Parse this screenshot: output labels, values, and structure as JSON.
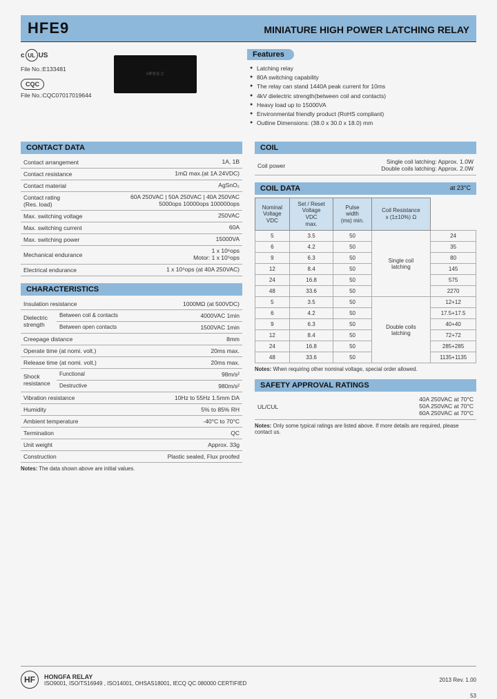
{
  "header": {
    "model": "HFE9",
    "title": "MINIATURE HIGH POWER LATCHING RELAY"
  },
  "certs": {
    "ul_prefix": "c",
    "ul_suffix": "US",
    "ul_file": "File No.:E133481",
    "cqc_label": "CQC",
    "cqc_file": "File No.:CQC07017019644"
  },
  "features": {
    "header": "Features",
    "items": [
      "Latching relay",
      "80A switching capability",
      "The relay can stand 1440A peak current for 10ms",
      "4kV dielectric strength(between coil and contacts)",
      "Heavy load up to 15000VA",
      "Environmental friendly product (RoHS compliant)",
      "Outline Dimensions: (38.0 x 30.0 x 18.0) mm"
    ]
  },
  "contact_data": {
    "header": "CONTACT DATA",
    "rows": [
      {
        "k": "Contact arrangement",
        "v": "1A, 1B"
      },
      {
        "k": "Contact resistance",
        "v": "1mΩ max.(at 1A 24VDC)"
      },
      {
        "k": "Contact material",
        "v": "AgSnO₂"
      },
      {
        "k": "Contact rating\n(Res. load)",
        "v": "60A 250VAC | 50A 250VAC | 40A 250VAC\n5000ops        10000ops        100000ops"
      },
      {
        "k": "Max. switching voltage",
        "v": "250VAC"
      },
      {
        "k": "Max. switching current",
        "v": "60A"
      },
      {
        "k": "Max. switching power",
        "v": "15000VA"
      },
      {
        "k": "Mechanical endurance",
        "v": "1 x 10⁶ops\nMotor: 1 x 10⁵ops"
      },
      {
        "k": "Electrical endurance",
        "v": "1 x 10⁵ops (at 40A 250VAC)"
      }
    ]
  },
  "characteristics": {
    "header": "CHARACTERISTICS",
    "rows": [
      {
        "k": "Insulation resistance",
        "v": "1000MΩ (at 500VDC)"
      },
      {
        "k": "Dielectric strength — Between coil & contacts",
        "v": "4000VAC 1min",
        "indent": true,
        "group": "Dielectric\nstrength"
      },
      {
        "k": "Dielectric strength — Between open contacts",
        "v": "1500VAC 1min",
        "indent": true
      },
      {
        "k": "Creepage distance",
        "v": "8mm"
      },
      {
        "k": "Operate time (at nomi. volt.)",
        "v": "20ms max."
      },
      {
        "k": "Release time (at nomi. volt.)",
        "v": "20ms max."
      },
      {
        "k": "Shock resistance — Functional",
        "v": "98m/s²",
        "indent": true,
        "group": "Shock resistance"
      },
      {
        "k": "Shock resistance — Destructive",
        "v": "980m/s²",
        "indent": true
      },
      {
        "k": "Vibration resistance",
        "v": "10Hz to 55Hz 1.5mm DA"
      },
      {
        "k": "Humidity",
        "v": "5% to 85% RH"
      },
      {
        "k": "Ambient temperature",
        "v": "-40°C to 70°C"
      },
      {
        "k": "Termination",
        "v": "QC"
      },
      {
        "k": "Unit weight",
        "v": "Approx. 33g"
      },
      {
        "k": "Construction",
        "v": "Plastic sealed, Flux proofed"
      }
    ],
    "note": "Notes: The data shown above are initial values."
  },
  "coil": {
    "header": "COIL",
    "row": {
      "k": "Coil power",
      "v": "Single coil latching: Approx. 1.0W\nDouble coils latching: Approx. 2.0W"
    }
  },
  "coil_data": {
    "header": "COIL DATA",
    "header_right": "at 23°C",
    "cols": [
      "Nominal\nVoltage\nVDC",
      "Set / Reset\nVoltage\nVDC\nmax.",
      "Pulse\nwidth\n(ms) min.",
      "",
      "Coil Resistance\nx (1±10%) Ω"
    ],
    "rows": [
      {
        "v": [
          "5",
          "3.5",
          "50",
          "",
          "24"
        ],
        "group": "Single coil\nlatching",
        "gstart": true
      },
      {
        "v": [
          "6",
          "4.2",
          "50",
          "",
          "35"
        ]
      },
      {
        "v": [
          "9",
          "6.3",
          "50",
          "",
          "80"
        ]
      },
      {
        "v": [
          "12",
          "8.4",
          "50",
          "",
          "145"
        ]
      },
      {
        "v": [
          "24",
          "16.8",
          "50",
          "",
          "575"
        ]
      },
      {
        "v": [
          "48",
          "33.6",
          "50",
          "",
          "2270"
        ],
        "gend": true
      },
      {
        "v": [
          "5",
          "3.5",
          "50",
          "",
          "12+12"
        ],
        "group": "Double coils\nlatching",
        "gstart": true
      },
      {
        "v": [
          "6",
          "4.2",
          "50",
          "",
          "17.5+17.5"
        ]
      },
      {
        "v": [
          "9",
          "6.3",
          "50",
          "",
          "40+40"
        ]
      },
      {
        "v": [
          "12",
          "8.4",
          "50",
          "",
          "72+72"
        ]
      },
      {
        "v": [
          "24",
          "16.8",
          "50",
          "",
          "285+285"
        ]
      },
      {
        "v": [
          "48",
          "33.6",
          "50",
          "",
          "1135+1135"
        ],
        "gend": true
      }
    ],
    "note": "Notes: When requiring other nominal voltage, special order allowed."
  },
  "safety": {
    "header": "SAFETY APPROVAL RATINGS",
    "row": {
      "k": "UL/CUL",
      "v": "40A 250VAC at 70°C\n50A 250VAC at 70°C\n60A 250VAC at 70°C"
    },
    "note": "Notes: Only some typical ratings are listed above. If more details are required, please contact us."
  },
  "footer": {
    "company": "HONGFA RELAY",
    "certs": "ISO9001, ISO/TS16949 , ISO14001, OHSAS18001, IECQ QC 080000 CERTIFIED",
    "rev": "2013 Rev. 1.00",
    "page": "53",
    "logo": "HF"
  }
}
